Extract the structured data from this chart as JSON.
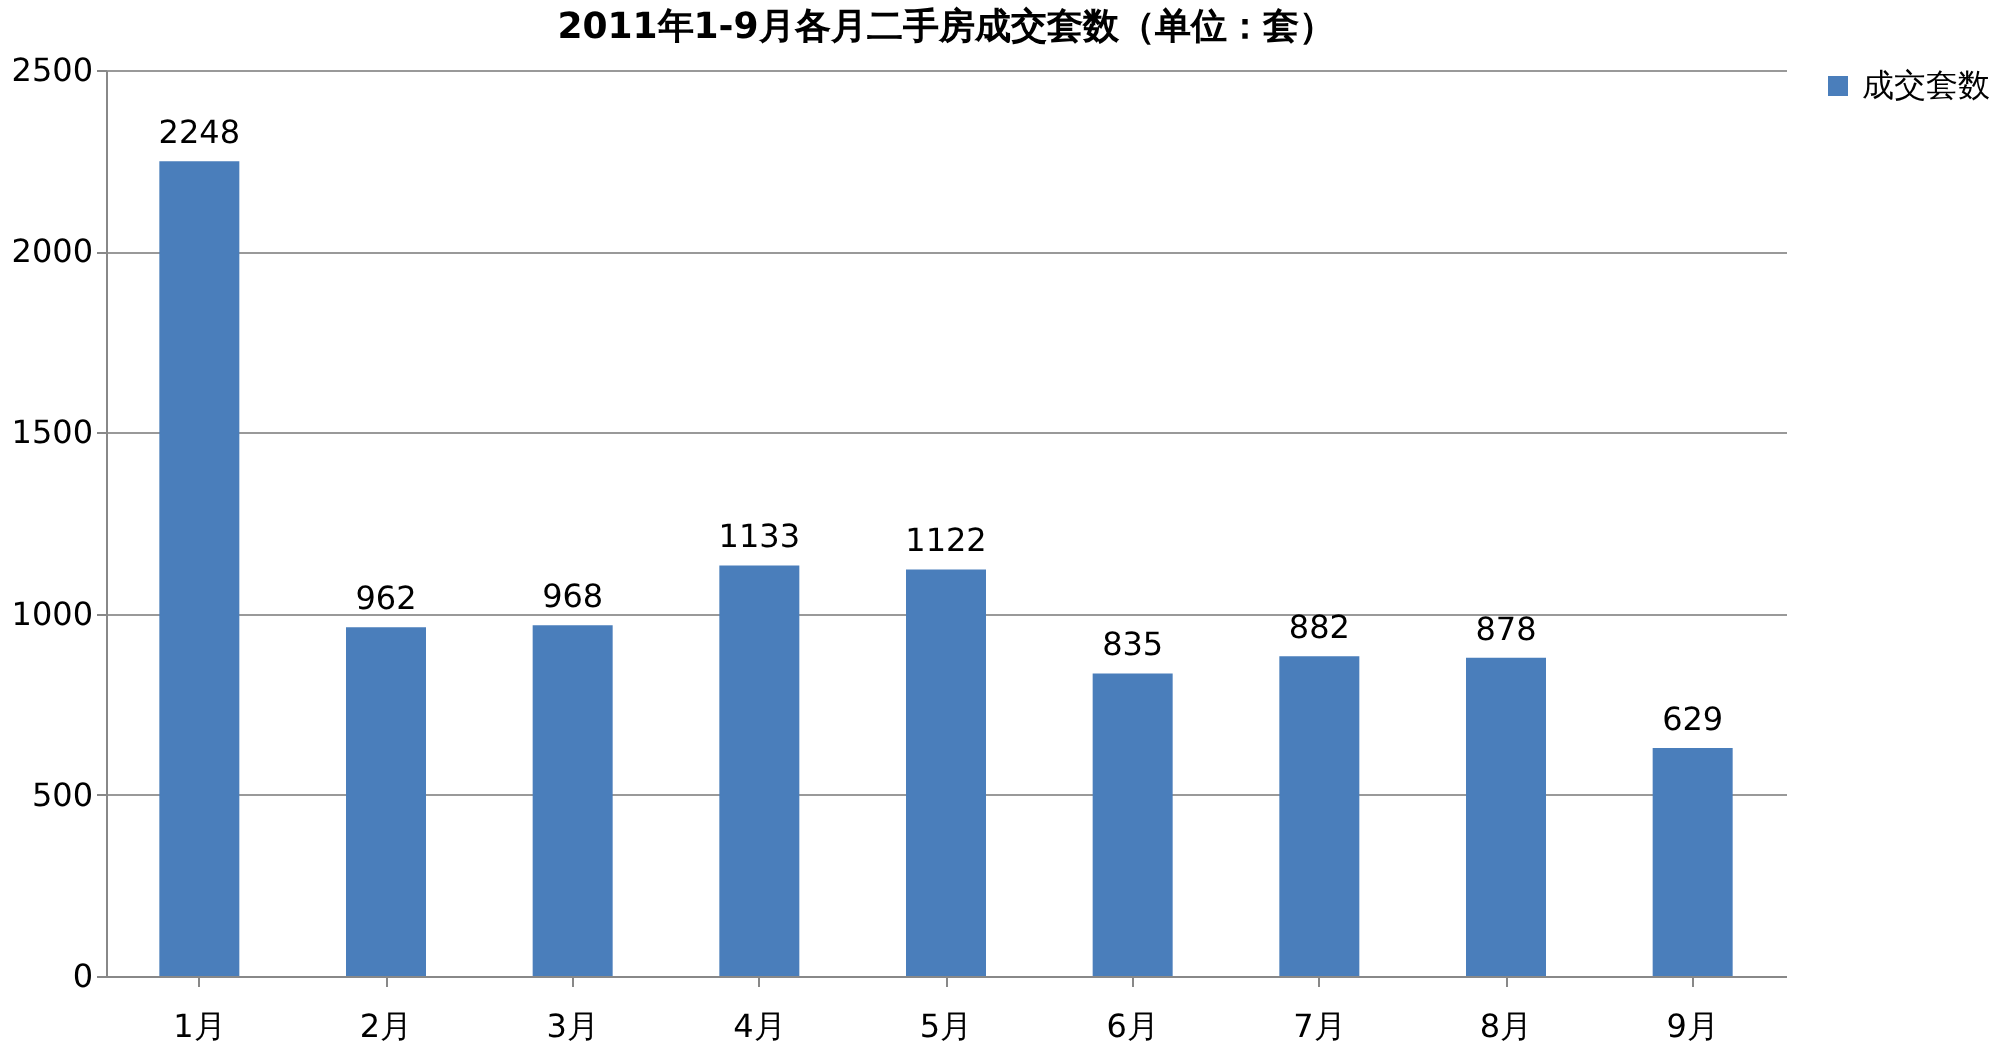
{
  "chart_data": {
    "type": "bar",
    "title": "2011年1-9月各月二手房成交套数（单位：套）",
    "categories": [
      "1月",
      "2月",
      "3月",
      "4月",
      "5月",
      "6月",
      "7月",
      "8月",
      "9月"
    ],
    "series": [
      {
        "name": "成交套数",
        "color": "#4a7ebb",
        "values": [
          2248,
          962,
          968,
          1133,
          1122,
          835,
          882,
          878,
          629
        ]
      }
    ],
    "ylim": [
      0,
      2500
    ],
    "yticks": [
      0,
      500,
      1000,
      1500,
      2000,
      2500
    ],
    "grid": "y",
    "legend": "right",
    "data_labels": true
  }
}
